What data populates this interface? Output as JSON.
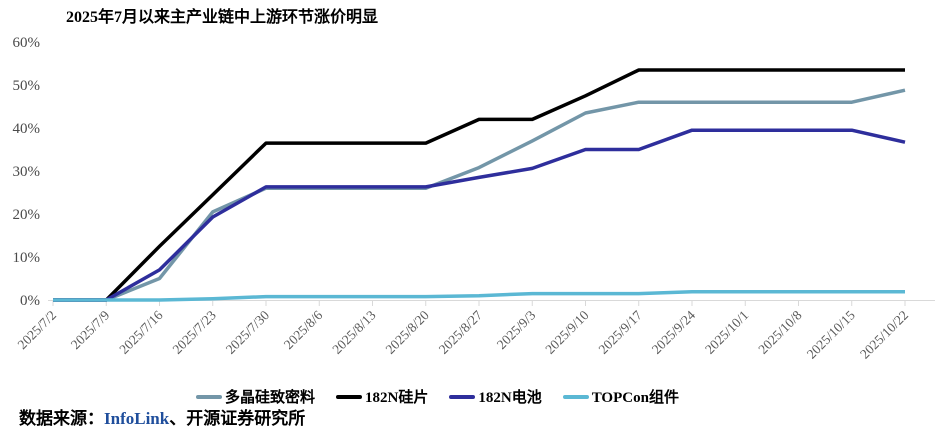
{
  "chart_data": {
    "type": "line",
    "title": "2025年7月以来主产业链中上游环节涨价明显",
    "categories": [
      "2025/7/2",
      "2025/7/9",
      "2025/7/16",
      "2025/7/23",
      "2025/7/30",
      "2025/8/6",
      "2025/8/13",
      "2025/8/20",
      "2025/8/27",
      "2025/9/3",
      "2025/9/10",
      "2025/9/17",
      "2025/9/24",
      "2025/10/1",
      "2025/10/8",
      "2025/10/15",
      "2025/10/22"
    ],
    "series": [
      {
        "name": "多晶硅致密料",
        "color": "#7396A8",
        "values": [
          0,
          0,
          5,
          20.5,
          26,
          26,
          26,
          26,
          30.8,
          37,
          43.5,
          46,
          46,
          46,
          46,
          46,
          48.8
        ]
      },
      {
        "name": "182N硅片",
        "color": "#000000",
        "values": [
          0,
          0,
          12.5,
          24.5,
          36.5,
          36.5,
          36.5,
          36.5,
          42,
          42,
          47.5,
          53.5,
          53.5,
          53.5,
          53.5,
          53.5,
          53.5
        ]
      },
      {
        "name": "182N电池",
        "color": "#2E2E9C",
        "values": [
          0,
          0,
          7,
          19.3,
          26.3,
          26.3,
          26.3,
          26.3,
          28.5,
          30.6,
          35,
          35,
          39.5,
          39.5,
          39.5,
          39.5,
          36.7
        ]
      },
      {
        "name": "TOPCon组件",
        "color": "#5BB8D4",
        "values": [
          0,
          0,
          0,
          0.3,
          0.8,
          0.8,
          0.8,
          0.8,
          1,
          1.5,
          1.5,
          1.5,
          1.9,
          1.9,
          1.9,
          1.9,
          1.9
        ]
      }
    ],
    "yticks": [
      "0%",
      "10%",
      "20%",
      "30%",
      "40%",
      "50%",
      "60%"
    ],
    "ylim": [
      0,
      60
    ],
    "grid": false,
    "legend_position": "bottom",
    "axis_color": "#D9D9D9",
    "x_tick_label_color": "#595959",
    "y_tick_label_color": "#4A4A4A"
  },
  "footer": {
    "label": "数据来源：",
    "source_highlight": "InfoLink",
    "source_rest": "、开源证券研究所",
    "highlight_color": "#1F4E9C"
  }
}
